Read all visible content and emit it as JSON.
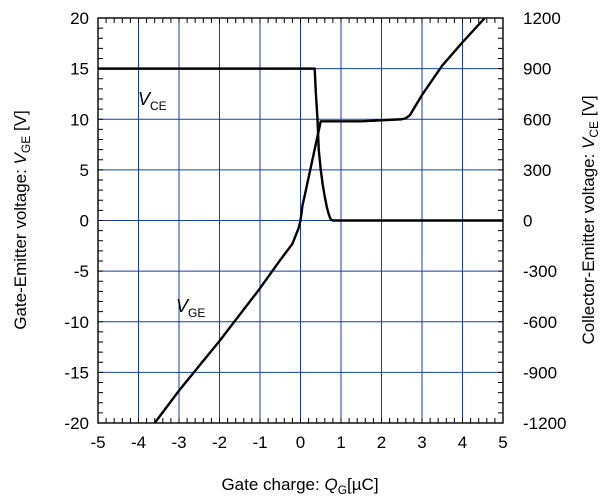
{
  "chart_data": {
    "type": "line",
    "xlabel": {
      "prefix": "Gate charge: ",
      "symbol": "Q",
      "sub": "G",
      "suffix": "[µC]"
    },
    "ylabel_left": {
      "prefix": "Gate-Emitter voltage: ",
      "symbol": "V",
      "sub": "GE",
      "suffix": " [V]"
    },
    "ylabel_right": {
      "prefix": "Collector-Emitter voltage: ",
      "symbol": "V",
      "sub": "CE",
      "suffix": " [V]"
    },
    "xlim": [
      -5,
      5
    ],
    "ylim_left": [
      -20,
      20
    ],
    "ylim_right": [
      -1200,
      1200
    ],
    "x_ticks": [
      "-5",
      "-4",
      "-3",
      "-2",
      "-1",
      "0",
      "1",
      "2",
      "3",
      "4",
      "5"
    ],
    "y_ticks_left": [
      "20",
      "15",
      "10",
      "5",
      "0",
      "-5",
      "-10",
      "-15",
      "-20"
    ],
    "y_ticks_right": [
      "1200",
      "900",
      "600",
      "300",
      "0",
      "-300",
      "-600",
      "-900",
      "-1200"
    ],
    "grid": true,
    "grid_color": "#1a3fa0",
    "line_color": "#000000",
    "series": [
      {
        "name": "V_GE",
        "axis": "left",
        "label": {
          "symbol": "V",
          "sub": "GE"
        },
        "x": [
          -3.6,
          -3.0,
          -2.0,
          -1.0,
          -0.5,
          -0.2,
          -0.05,
          0.0,
          0.05,
          0.1,
          0.5,
          1.0,
          1.5,
          2.0,
          2.5,
          2.6,
          2.7,
          3.0,
          3.5,
          4.0,
          4.55
        ],
        "y": [
          -20.0,
          -16.8,
          -11.9,
          -6.7,
          -3.9,
          -2.3,
          -0.8,
          0.0,
          1.5,
          2.4,
          9.8,
          9.8,
          9.8,
          9.9,
          10.0,
          10.1,
          10.4,
          12.4,
          15.3,
          17.6,
          20.0
        ]
      },
      {
        "name": "V_CE",
        "axis": "right",
        "label": {
          "symbol": "V",
          "sub": "CE"
        },
        "x": [
          -5.0,
          0.0,
          0.35,
          0.38,
          0.42,
          0.45,
          0.5,
          0.55,
          0.6,
          0.65,
          0.7,
          0.75,
          0.8,
          5.0
        ],
        "y": [
          900,
          900,
          900,
          750,
          600,
          420,
          300,
          210,
          140,
          80,
          35,
          5,
          0,
          0
        ]
      }
    ]
  }
}
